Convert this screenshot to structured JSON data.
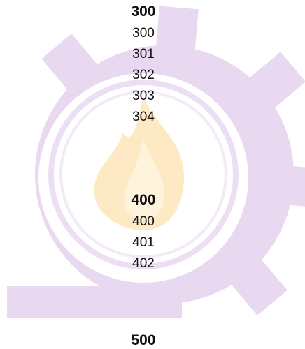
{
  "sections": [
    {
      "heading": "300",
      "items": [
        "300",
        "301",
        "302",
        "303",
        "304"
      ]
    },
    {
      "heading": "400",
      "items": [
        "400",
        "401",
        "402"
      ]
    },
    {
      "heading": "500",
      "items": []
    }
  ]
}
